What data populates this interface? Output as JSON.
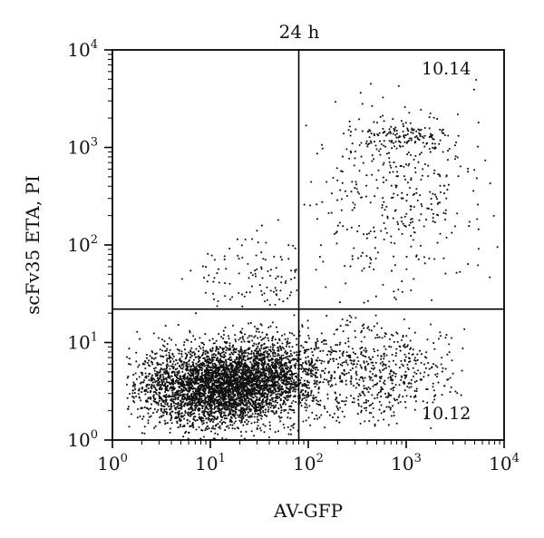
{
  "chart_data": {
    "type": "scatter",
    "title": "24 h",
    "xlabel": "AV-GFP",
    "ylabel": "scFv35 ETA, PI",
    "xscale": "log",
    "yscale": "log",
    "xlim": [
      1,
      10000
    ],
    "ylim": [
      1,
      10000
    ],
    "tick_base": "10",
    "x_tick_exponents": [
      "0",
      "1",
      "2",
      "3",
      "4"
    ],
    "y_tick_exponents": [
      "0",
      "1",
      "2",
      "3",
      "4"
    ],
    "grid": false,
    "gates": {
      "x": 80,
      "y": 22
    },
    "quadrant_labels": {
      "upper_right": "10.14",
      "lower_right": "10.12"
    },
    "populations": [
      {
        "region": "main-cluster",
        "count": 3600,
        "x_center": 12,
        "y_center": 3.5,
        "x_log_spread": 0.4,
        "y_log_spread": 0.2,
        "x_min": 1.4,
        "x_max": 150,
        "y_min": 1.0,
        "y_max": 20
      },
      {
        "region": "cluster-extension",
        "count": 900,
        "x_center": 40,
        "y_center": 5,
        "x_log_spread": 0.25,
        "y_log_spread": 0.2,
        "x_min": 10,
        "x_max": 120,
        "y_min": 2,
        "y_max": 20
      },
      {
        "region": "upper-right-cluster",
        "count": 140,
        "x_center": 900,
        "y_center": 1300,
        "x_log_spread": 0.25,
        "y_log_spread": 0.07,
        "x_min": 150,
        "x_max": 3000,
        "y_min": 700,
        "y_max": 2500
      },
      {
        "region": "upper-right-scatter",
        "count": 380,
        "x_center": 700,
        "y_center": 300,
        "x_log_spread": 0.45,
        "y_log_spread": 0.5,
        "x_min": 85,
        "x_max": 9000,
        "y_min": 25,
        "y_max": 5000
      },
      {
        "region": "lower-right-scatter",
        "count": 650,
        "x_center": 400,
        "y_center": 5,
        "x_log_spread": 0.45,
        "y_log_spread": 0.25,
        "x_min": 85,
        "x_max": 4000,
        "y_min": 1.2,
        "y_max": 20
      },
      {
        "region": "upper-left-scatter",
        "count": 110,
        "x_center": 40,
        "y_center": 40,
        "x_log_spread": 0.35,
        "y_log_spread": 0.25,
        "x_min": 2,
        "x_max": 78,
        "y_min": 23,
        "y_max": 1500
      }
    ]
  }
}
